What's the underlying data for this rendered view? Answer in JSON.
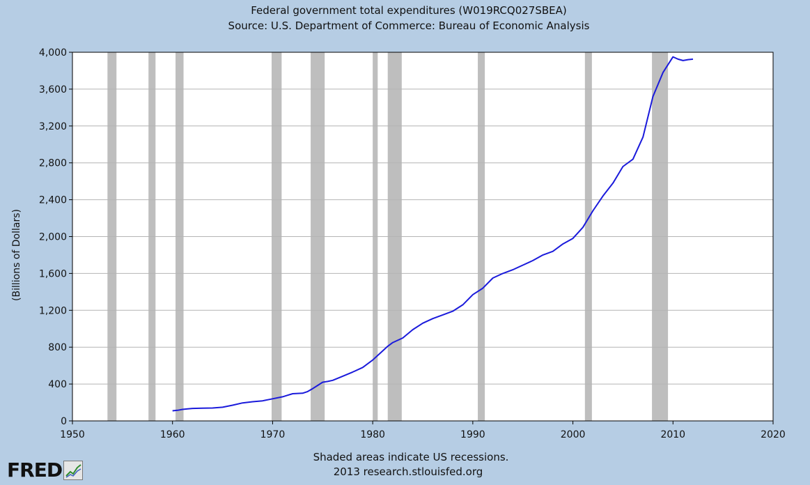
{
  "chart_data": {
    "type": "line",
    "title": "Federal government total expenditures (W019RCQ027SBEA)",
    "subtitle": "Source: U.S. Department of Commerce: Bureau of Economic Analysis",
    "ylabel": "(Billions of Dollars)",
    "xlabel": "",
    "xlim": [
      1950,
      2020
    ],
    "ylim": [
      0,
      4000
    ],
    "grid": true,
    "x_ticks": [
      "1950",
      "1960",
      "1970",
      "1980",
      "1990",
      "2000",
      "2010",
      "2020"
    ],
    "y_ticks": [
      "0",
      "400",
      "800",
      "1,200",
      "1,600",
      "2,000",
      "2,400",
      "2,800",
      "3,200",
      "3,600",
      "4,000"
    ],
    "line_color": "#1a1adb",
    "recession_color": "#bebebe",
    "recessions": [
      [
        1953.5,
        1954.4
      ],
      [
        1957.6,
        1958.3
      ],
      [
        1960.3,
        1961.1
      ],
      [
        1969.9,
        1970.9
      ],
      [
        1973.8,
        1975.2
      ],
      [
        1980.0,
        1980.5
      ],
      [
        1981.5,
        1982.9
      ],
      [
        1990.5,
        1991.2
      ],
      [
        2001.2,
        2001.9
      ],
      [
        2007.9,
        2009.5
      ]
    ],
    "series": [
      {
        "values": [
          [
            1960.0,
            110
          ],
          [
            1960.5,
            115
          ],
          [
            1961.0,
            125
          ],
          [
            1961.5,
            130
          ],
          [
            1962.0,
            135
          ],
          [
            1963.0,
            138
          ],
          [
            1964.0,
            140
          ],
          [
            1965.0,
            148
          ],
          [
            1966.0,
            170
          ],
          [
            1967.0,
            195
          ],
          [
            1968.0,
            208
          ],
          [
            1969.0,
            218
          ],
          [
            1970.0,
            240
          ],
          [
            1971.0,
            262
          ],
          [
            1971.5,
            278
          ],
          [
            1972.0,
            295
          ],
          [
            1973.0,
            300
          ],
          [
            1973.5,
            318
          ],
          [
            1974.0,
            350
          ],
          [
            1974.5,
            385
          ],
          [
            1975.0,
            420
          ],
          [
            1975.5,
            428
          ],
          [
            1976.0,
            440
          ],
          [
            1977.0,
            485
          ],
          [
            1978.0,
            530
          ],
          [
            1979.0,
            580
          ],
          [
            1980.0,
            660
          ],
          [
            1981.0,
            760
          ],
          [
            1981.5,
            810
          ],
          [
            1982.0,
            850
          ],
          [
            1983.0,
            900
          ],
          [
            1984.0,
            990
          ],
          [
            1985.0,
            1060
          ],
          [
            1986.0,
            1110
          ],
          [
            1987.0,
            1150
          ],
          [
            1988.0,
            1190
          ],
          [
            1989.0,
            1260
          ],
          [
            1990.0,
            1370
          ],
          [
            1991.0,
            1440
          ],
          [
            1992.0,
            1550
          ],
          [
            1993.0,
            1600
          ],
          [
            1994.0,
            1640
          ],
          [
            1995.0,
            1690
          ],
          [
            1996.0,
            1740
          ],
          [
            1997.0,
            1800
          ],
          [
            1998.0,
            1840
          ],
          [
            1999.0,
            1920
          ],
          [
            2000.0,
            1980
          ],
          [
            2001.0,
            2100
          ],
          [
            2002.0,
            2280
          ],
          [
            2003.0,
            2440
          ],
          [
            2004.0,
            2580
          ],
          [
            2005.0,
            2760
          ],
          [
            2006.0,
            2840
          ],
          [
            2007.0,
            3080
          ],
          [
            2008.0,
            3520
          ],
          [
            2009.0,
            3780
          ],
          [
            2010.0,
            3950
          ],
          [
            2010.5,
            3925
          ],
          [
            2011.0,
            3910
          ],
          [
            2011.5,
            3920
          ],
          [
            2012.0,
            3925
          ]
        ]
      }
    ]
  },
  "footer": {
    "note": "Shaded areas indicate US recessions.",
    "credit": "2013 research.stlouisfed.org"
  },
  "logo": {
    "text": "FRED",
    "icon": "chart-trend-icon"
  }
}
